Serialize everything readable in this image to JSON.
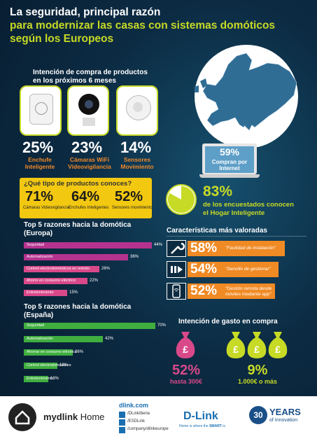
{
  "title": {
    "line1": "La seguridad, principal razón",
    "line2": "para  modernizar las casas con sistemas domóticos",
    "line3": "según los Europeos"
  },
  "purchase": {
    "heading_l1": "Intención de compra de productos",
    "heading_l2": "en los próximos 6 meses",
    "items": [
      {
        "pct": "25%",
        "label_l1": "Enchufe",
        "label_l2": "Inteligente",
        "fraction": 0.25
      },
      {
        "pct": "23%",
        "label_l1": "Cámaras WiFi",
        "label_l2": "Videovigilancia",
        "fraction": 0.23
      },
      {
        "pct": "14%",
        "label_l1": "Sensores",
        "label_l2": "Movimiento",
        "fraction": 0.14
      }
    ]
  },
  "internet": {
    "pct": "59%",
    "label_l1": "Compran por",
    "label_l2": "Internet"
  },
  "product_types": {
    "title": "¿Qué tipo de productos conoces?",
    "items": [
      {
        "pct": "71%",
        "label": "Cámaras Videovigilancia"
      },
      {
        "pct": "64%",
        "label": "Enchufes Inteligentes"
      },
      {
        "pct": "52%",
        "label": "Sensores movimiento"
      }
    ]
  },
  "smart_home": {
    "pct": "83%",
    "text_l1": "de los encuestados conocen",
    "text_l2": "el Hogar Inteligente",
    "fraction": 0.83
  },
  "europe": {
    "title_l1": "Top 5 razones hacia la domótica",
    "title_l2": "(Europa)",
    "bars": [
      {
        "label": "Seguridad",
        "value": "44%",
        "fraction": 0.44
      },
      {
        "label": "Automatización",
        "value": "36%",
        "fraction": 0.36
      },
      {
        "label": "Control electrodomésticos en remoto",
        "value": "26%",
        "fraction": 0.26
      },
      {
        "label": "Ahorro en consumo eléctrico",
        "value": "22%",
        "fraction": 0.22
      },
      {
        "label": "Entretenimiento",
        "value": "15%",
        "fraction": 0.15
      }
    ]
  },
  "spain": {
    "title_l1": "Top 5 razones hacia la domótica",
    "title_l2": "(España)",
    "bars": [
      {
        "label": "Seguridad",
        "value": "70%",
        "fraction": 0.7
      },
      {
        "label": "Automatización",
        "value": "42%",
        "fraction": 0.42
      },
      {
        "label": "Ahorrar en consumo eléctrico",
        "value": "26%",
        "fraction": 0.26
      },
      {
        "label": "Control electrodomésticos",
        "value": "18%",
        "fraction": 0.18
      },
      {
        "label": "Entretenimiento",
        "value": "13%",
        "fraction": 0.13
      }
    ]
  },
  "features": {
    "title": "Características más valoradas",
    "items": [
      {
        "pct": "58%",
        "text": "\"Facilidad de instalación\"",
        "icon": "wrench-icon",
        "fraction": 0.58
      },
      {
        "pct": "54%",
        "text": "\"Sencillo de gestionar\"",
        "icon": "play-pause-icon",
        "fraction": 0.54
      },
      {
        "pct": "52%",
        "text_l1": "\"Gestión remota desde",
        "text_l2": "móviles mediante app\"",
        "icon": "phone-wifi-icon",
        "fraction": 0.52
      }
    ]
  },
  "spending": {
    "title": "Intención de gasto en compra",
    "items": [
      {
        "pct": "52%",
        "label": "hasta 300€",
        "color": "#d9498a"
      },
      {
        "pct": "9%",
        "label": "1.000€ o más",
        "color": "#c7da26"
      }
    ],
    "currency_symbol": "£"
  },
  "footer": {
    "brand_bold": "mydlink",
    "brand_rest": " Home",
    "site": "dlink.com",
    "social": [
      "/DLinkIberia",
      "/ESDLink",
      "/company/dlinkeurope"
    ],
    "dlink_logo": "D-Link",
    "dlink_tagline_a": "Home is where the ",
    "dlink_tagline_b": "SMART",
    "dlink_tagline_c": " is",
    "years_num": "30",
    "years_word": "YEARS",
    "years_sub": "of Innovation"
  },
  "colors": {
    "accent_green": "#c7da26",
    "orange": "#f08a24",
    "magenta": "#b5338f",
    "pink": "#d9498a",
    "green_bar": "#3fae3f",
    "yellow": "#f2c811"
  }
}
